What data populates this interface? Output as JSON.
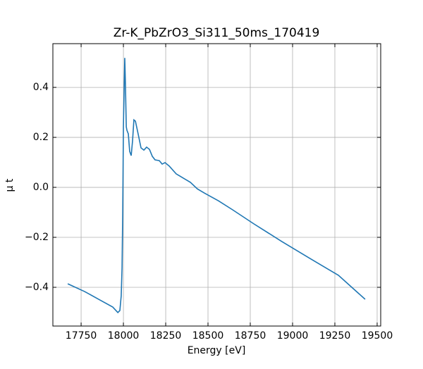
{
  "chart_data": {
    "type": "line",
    "title": "Zr-K_PbZrO3_Si311_50ms_170419",
    "xlabel": "Energy [eV]",
    "ylabel": "μ t",
    "color": "#1f77b4",
    "grid": true,
    "x": [
      17671,
      17771,
      17854,
      17937,
      17967,
      17979,
      17987,
      17992,
      17996,
      18000,
      18008,
      18012,
      18017,
      18021,
      18029,
      18037,
      18046,
      18054,
      18062,
      18071,
      18087,
      18104,
      18121,
      18137,
      18154,
      18171,
      18187,
      18212,
      18229,
      18246,
      18271,
      18312,
      18354,
      18396,
      18437,
      18479,
      18562,
      18646,
      18771,
      18937,
      19104,
      19271,
      19429
    ],
    "values": [
      -0.386,
      -0.417,
      -0.448,
      -0.479,
      -0.501,
      -0.493,
      -0.434,
      -0.321,
      -0.096,
      0.242,
      0.518,
      0.411,
      0.242,
      0.228,
      0.214,
      0.144,
      0.127,
      0.186,
      0.27,
      0.265,
      0.214,
      0.158,
      0.149,
      0.161,
      0.152,
      0.124,
      0.11,
      0.107,
      0.093,
      0.099,
      0.085,
      0.054,
      0.037,
      0.02,
      -0.006,
      -0.023,
      -0.054,
      -0.09,
      -0.146,
      -0.217,
      -0.285,
      -0.352,
      -0.448
    ],
    "xlim": [
      17583,
      19521
    ],
    "xticks": [
      17750,
      18000,
      18250,
      18500,
      18750,
      19000,
      19250,
      19500
    ],
    "ylim": [
      -0.555,
      0.575
    ],
    "yticks": [
      {
        "value": -0.4,
        "label": "−0.4"
      },
      {
        "value": -0.2,
        "label": "−0.2"
      },
      {
        "value": 0,
        "label": "0.0"
      },
      0.2,
      0.4
    ]
  }
}
